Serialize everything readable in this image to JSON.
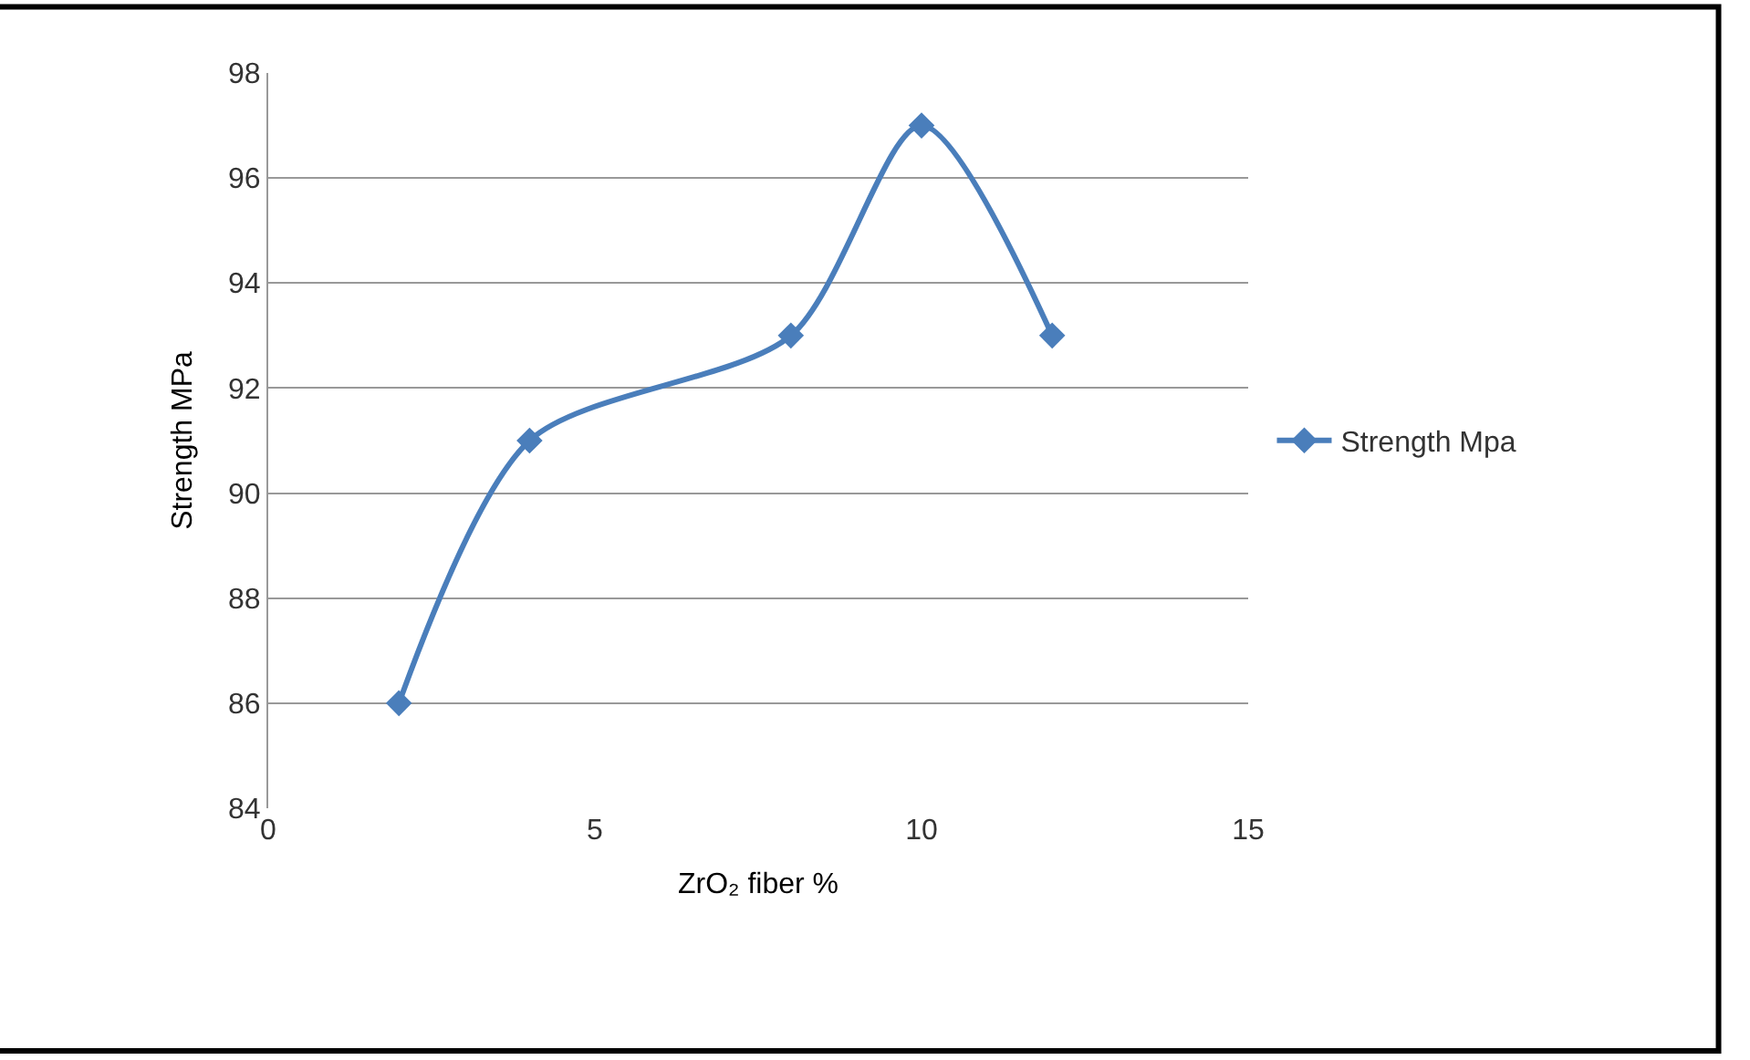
{
  "chart_data": {
    "type": "line",
    "xlabel": "ZrO₂ fiber %",
    "ylabel": "Strength MPa",
    "x": [
      2,
      4,
      8,
      10,
      12
    ],
    "series": [
      {
        "name": "Strength Mpa",
        "color": "#4a7ebb",
        "values": [
          86,
          91,
          93,
          97,
          93
        ]
      }
    ],
    "xlim": [
      0,
      15
    ],
    "xticks": [
      0,
      5,
      10,
      15
    ],
    "ylim": [
      84,
      98
    ],
    "yticks": [
      84,
      86,
      88,
      90,
      92,
      94,
      96,
      98
    ],
    "grid": "y",
    "legend": "right",
    "marker": "diamond",
    "line_style": "solid"
  }
}
